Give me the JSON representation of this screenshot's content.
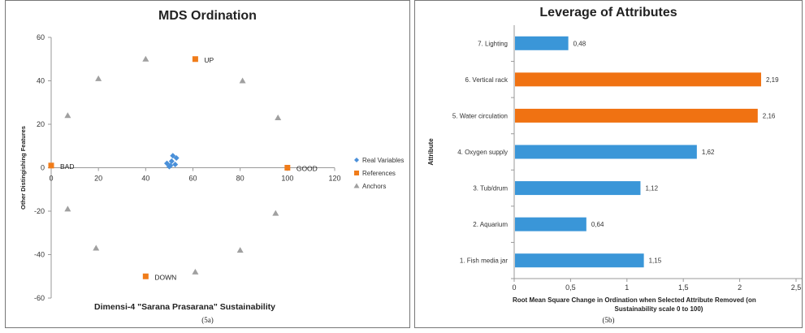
{
  "chart_data": [
    {
      "type": "scatter",
      "title": "MDS Ordination",
      "xlabel": "Dimensi-4 \"Sarana Prasarana\" Sustainability",
      "ylabel": "Other Distingishing Features",
      "xlim": [
        0,
        120
      ],
      "ylim": [
        -60,
        60
      ],
      "xticks": [
        "0",
        "20",
        "40",
        "60",
        "80",
        "100",
        "120"
      ],
      "yticks": [
        "60",
        "40",
        "20",
        "0",
        "-20",
        "-40",
        "-60"
      ],
      "grid": false,
      "legend_position": "right",
      "caption": "(5a)",
      "series": [
        {
          "name": "Real Variables",
          "color": "#4a90d9",
          "marker": "diamond",
          "x": [
            49,
            50.5,
            51.5,
            53,
            51,
            52.5,
            50
          ],
          "y": [
            2,
            1,
            5.5,
            4.5,
            3,
            1.5,
            0.5
          ]
        },
        {
          "name": "References",
          "color": "#f07c1a",
          "marker": "square",
          "x": [
            0,
            100,
            61,
            40
          ],
          "y": [
            1,
            0,
            50,
            -50
          ],
          "labels": [
            "BAD",
            "GOOD",
            "UP",
            "DOWN"
          ]
        },
        {
          "name": "Anchors",
          "color": "#a0a0a0",
          "marker": "triangle",
          "x": [
            7,
            20,
            40,
            81,
            96,
            7,
            19,
            61,
            80,
            95
          ],
          "y": [
            24,
            41,
            50,
            40,
            23,
            -19,
            -37,
            -48,
            -38,
            -21
          ]
        }
      ]
    },
    {
      "type": "bar",
      "orientation": "horizontal",
      "title": "Leverage of Attributes",
      "xlabel": "Root Mean Square Change in Ordination when Selected Attribute Removed (on Sustainability scale 0 to 100)",
      "ylabel": "Attribute",
      "xlim": [
        0,
        2.5
      ],
      "xticks": [
        "0",
        "0,5",
        "1",
        "1,5",
        "2",
        "2,5"
      ],
      "caption": "(5b)",
      "categories": [
        "1. Fish media jar",
        "2. Aquarium",
        "3. Tub/drum",
        "4. Oxygen supply",
        "5. Water circulation",
        "6. Vertical rack",
        "7. Lighting"
      ],
      "values": [
        1.15,
        0.64,
        1.12,
        1.62,
        2.16,
        2.19,
        0.48
      ],
      "value_labels": [
        "1,15",
        "0,64",
        "1,12",
        "1,62",
        "2,16",
        "2,19",
        "0,48"
      ],
      "colors": [
        "#3a96d8",
        "#3a96d8",
        "#3a96d8",
        "#3a96d8",
        "#f07212",
        "#f07212",
        "#3a96d8"
      ]
    }
  ]
}
